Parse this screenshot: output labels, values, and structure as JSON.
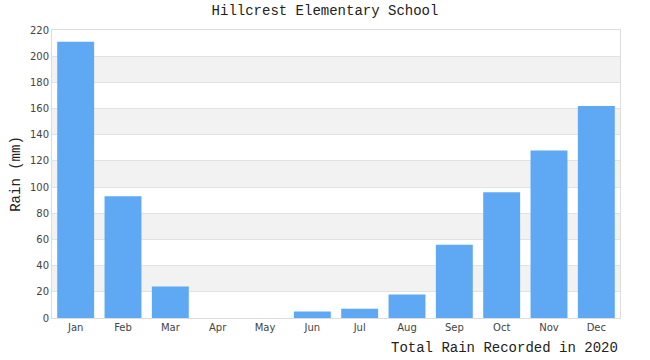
{
  "chart_data": {
    "type": "bar",
    "title": "Hillcrest Elementary School",
    "ylabel": "Rain (mm)",
    "xlabel": "Total Rain Recorded in 2020",
    "categories": [
      "Jan",
      "Feb",
      "Mar",
      "Apr",
      "May",
      "Jun",
      "Jul",
      "Aug",
      "Sep",
      "Oct",
      "Nov",
      "Dec"
    ],
    "values": [
      211,
      93,
      24,
      0,
      0,
      5,
      7,
      18,
      56,
      96,
      128,
      162
    ],
    "color": "#5ea8f4",
    "ylim": [
      0,
      220
    ],
    "yticks": [
      0,
      20,
      40,
      60,
      80,
      100,
      120,
      140,
      160,
      180,
      200,
      220
    ],
    "grid": true
  }
}
